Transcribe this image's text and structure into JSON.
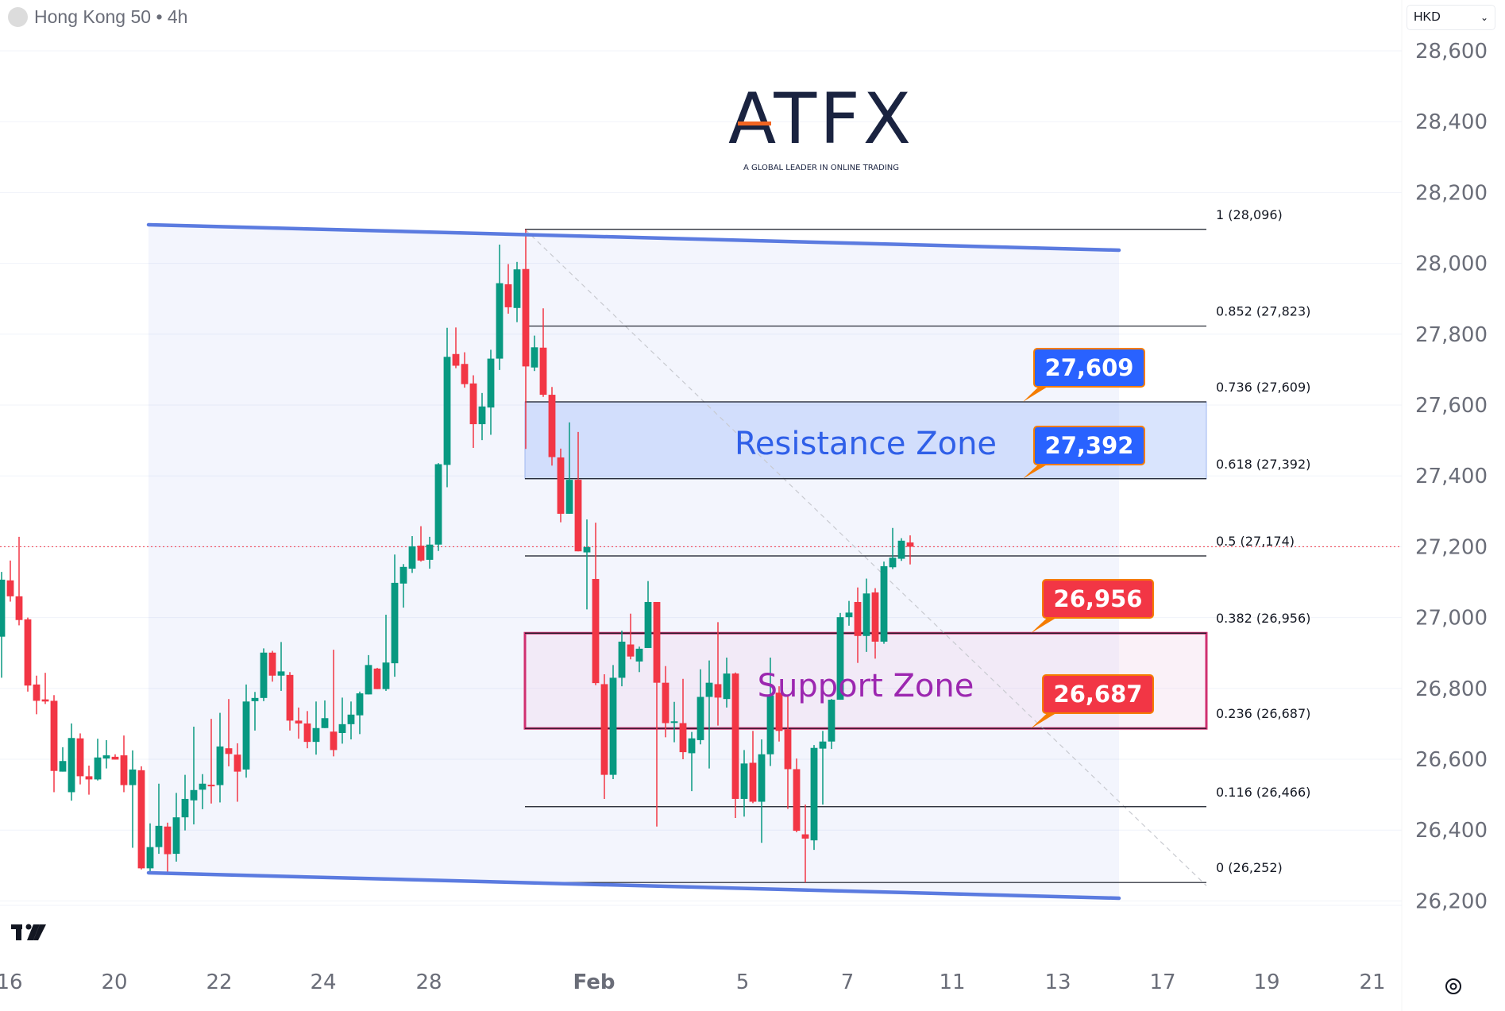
{
  "header": {
    "title": "Hong Kong 50 • 4h",
    "currency": "HKD"
  },
  "logo": {
    "brand": "ATFX",
    "tagline": "A GLOBAL LEADER IN ONLINE TRADING"
  },
  "colors": {
    "up": "#089981",
    "down": "#f23645",
    "channel": "#5b7be0",
    "resistance_text": "#2f5fe8",
    "support_text": "#9c27b0",
    "support_border": "#d03070",
    "callout_blue": "#2962ff",
    "callout_red": "#f23645",
    "callout_border": "#f57c00"
  },
  "chart_data": {
    "type": "candlestick",
    "title": "Hong Kong 50 • 4h",
    "ylim": [
      26100,
      28650
    ],
    "grid": true,
    "y_ticks": [
      "28,600",
      "28,400",
      "28,200",
      "28,000",
      "27,800",
      "27,600",
      "27,400",
      "27,200",
      "27,000",
      "26,800",
      "26,600",
      "26,400",
      "26,200"
    ],
    "y_tick_values": [
      28600,
      28400,
      28200,
      28000,
      27800,
      27600,
      27400,
      27200,
      27000,
      26800,
      26600,
      26400,
      26200
    ],
    "x_ticks": [
      "16",
      "20",
      "22",
      "24",
      "28",
      "Feb",
      "5",
      "7",
      "11",
      "13",
      "17",
      "19",
      "21"
    ],
    "last_price": 27200,
    "candles_ohlc": [
      [
        26946,
        27129,
        26830,
        27107
      ],
      [
        27105,
        27161,
        27045,
        27060
      ],
      [
        27060,
        27228,
        26978,
        26993
      ],
      [
        26995,
        27000,
        26791,
        26808
      ],
      [
        26811,
        26836,
        26727,
        26765
      ],
      [
        26769,
        26844,
        26756,
        26763
      ],
      [
        26765,
        26781,
        26507,
        26567
      ],
      [
        26565,
        26634,
        26565,
        26595
      ],
      [
        26507,
        26701,
        26483,
        26660
      ],
      [
        26659,
        26673,
        26529,
        26552
      ],
      [
        26552,
        26582,
        26500,
        26543
      ],
      [
        26543,
        26658,
        26540,
        26605
      ],
      [
        26602,
        26654,
        26574,
        26611
      ],
      [
        26607,
        26614,
        26599,
        26599
      ],
      [
        26611,
        26667,
        26507,
        26527
      ],
      [
        26527,
        26625,
        26350,
        26571
      ],
      [
        26569,
        26580,
        26289,
        26292
      ],
      [
        26292,
        26419,
        26277,
        26352
      ],
      [
        26352,
        26531,
        26333,
        26412
      ],
      [
        26410,
        26421,
        26281,
        26332
      ],
      [
        26333,
        26505,
        26311,
        26436
      ],
      [
        26436,
        26556,
        26399,
        26488
      ],
      [
        26484,
        26692,
        26416,
        26513
      ],
      [
        26514,
        26558,
        26459,
        26531
      ],
      [
        26528,
        26714,
        26475,
        26527
      ],
      [
        26527,
        26731,
        26478,
        26636
      ],
      [
        26631,
        26770,
        26580,
        26615
      ],
      [
        26613,
        26645,
        26480,
        26565
      ],
      [
        26571,
        26811,
        26548,
        26763
      ],
      [
        26764,
        26790,
        26681,
        26773
      ],
      [
        26773,
        26913,
        26764,
        26901
      ],
      [
        26901,
        26906,
        26819,
        26836
      ],
      [
        26836,
        26931,
        26793,
        26848
      ],
      [
        26838,
        26846,
        26681,
        26709
      ],
      [
        26709,
        26746,
        26658,
        26701
      ],
      [
        26701,
        26736,
        26631,
        26649
      ],
      [
        26649,
        26763,
        26613,
        26688
      ],
      [
        26688,
        26766,
        26688,
        26716
      ],
      [
        26678,
        26909,
        26608,
        26626
      ],
      [
        26674,
        26774,
        26644,
        26699
      ],
      [
        26699,
        26763,
        26656,
        26726
      ],
      [
        26724,
        26791,
        26671,
        26786
      ],
      [
        26783,
        26894,
        26783,
        26866
      ],
      [
        26856,
        26858,
        26798,
        26798
      ],
      [
        26798,
        27008,
        26793,
        26873
      ],
      [
        26871,
        27178,
        26833,
        27098
      ],
      [
        27096,
        27151,
        27028,
        27143
      ],
      [
        27138,
        27230,
        27126,
        27201
      ],
      [
        27203,
        27258,
        27158,
        27161
      ],
      [
        27163,
        27228,
        27138,
        27206
      ],
      [
        27206,
        27436,
        27188,
        27433
      ],
      [
        27431,
        27818,
        27368,
        27736
      ],
      [
        27744,
        27819,
        27704,
        27711
      ],
      [
        27716,
        27749,
        27649,
        27659
      ],
      [
        27661,
        27684,
        27479,
        27546
      ],
      [
        27546,
        27634,
        27501,
        27596
      ],
      [
        27593,
        27756,
        27516,
        27731
      ],
      [
        27731,
        28053,
        27699,
        27944
      ],
      [
        27941,
        27998,
        27858,
        27876
      ],
      [
        27874,
        28004,
        27834,
        27983
      ],
      [
        27984,
        28096,
        27476,
        27709
      ],
      [
        27706,
        27796,
        27696,
        27763
      ],
      [
        27762,
        27873,
        27623,
        27629
      ],
      [
        27629,
        27651,
        27429,
        27453
      ],
      [
        27452,
        27477,
        27269,
        27293
      ],
      [
        27293,
        27551,
        27293,
        27389
      ],
      [
        27389,
        27524,
        27187,
        27187
      ],
      [
        27184,
        27277,
        27023,
        27199
      ],
      [
        27109,
        27268,
        26809,
        26815
      ],
      [
        26812,
        26840,
        26488,
        26556
      ],
      [
        26556,
        26866,
        26544,
        26830
      ],
      [
        26830,
        26963,
        26806,
        26932
      ],
      [
        26924,
        27011,
        26882,
        26890
      ],
      [
        26876,
        26918,
        26846,
        26912
      ],
      [
        26914,
        27103,
        26914,
        27044
      ],
      [
        27044,
        27044,
        26410,
        26816
      ],
      [
        26816,
        26863,
        26662,
        26702
      ],
      [
        26705,
        26762,
        26648,
        26707
      ],
      [
        26702,
        26827,
        26600,
        26620
      ],
      [
        26617,
        26677,
        26510,
        26659
      ],
      [
        26654,
        26854,
        26642,
        26776
      ],
      [
        26776,
        26879,
        26574,
        26816
      ],
      [
        26812,
        26987,
        26695,
        26774
      ],
      [
        26770,
        26887,
        26746,
        26842
      ],
      [
        26842,
        26845,
        26434,
        26488
      ],
      [
        26488,
        26626,
        26438,
        26588
      ],
      [
        26590,
        26680,
        26476,
        26480
      ],
      [
        26480,
        26656,
        26364,
        26614
      ],
      [
        26614,
        26887,
        26581,
        26780
      ],
      [
        26788,
        26806,
        26650,
        26680
      ],
      [
        26684,
        26780,
        26460,
        26572
      ],
      [
        26572,
        26602,
        26394,
        26398
      ],
      [
        26388,
        26472,
        26252,
        26376
      ],
      [
        26371,
        26640,
        26344,
        26632
      ],
      [
        26630,
        26680,
        26472,
        26650
      ],
      [
        26650,
        26770,
        26629,
        26768
      ],
      [
        26768,
        27013,
        26768,
        27001
      ],
      [
        27001,
        27047,
        26977,
        27014
      ],
      [
        27044,
        27085,
        26872,
        26948
      ],
      [
        26948,
        27110,
        26903,
        27068
      ],
      [
        27071,
        27083,
        26884,
        26932
      ],
      [
        26932,
        27158,
        26926,
        27145
      ],
      [
        27142,
        27253,
        27137,
        27169
      ],
      [
        27166,
        27224,
        27160,
        27217
      ],
      [
        27212,
        27232,
        27150,
        27200
      ]
    ],
    "fibonacci": [
      {
        "ratio": 1,
        "price": 28096,
        "label": "1 (28,096)"
      },
      {
        "ratio": 0.852,
        "price": 27823,
        "label": "0.852 (27,823)"
      },
      {
        "ratio": 0.736,
        "price": 27609,
        "label": "0.736 (27,609)"
      },
      {
        "ratio": 0.618,
        "price": 27392,
        "label": "0.618 (27,392)"
      },
      {
        "ratio": 0.5,
        "price": 27174,
        "label": "0.5 (27,174)"
      },
      {
        "ratio": 0.382,
        "price": 26956,
        "label": "0.382 (26,956)"
      },
      {
        "ratio": 0.236,
        "price": 26687,
        "label": "0.236 (26,687)"
      },
      {
        "ratio": 0.116,
        "price": 26466,
        "label": "0.116 (26,466)"
      },
      {
        "ratio": 0,
        "price": 26252,
        "label": "0 (26,252)"
      }
    ],
    "zones": {
      "resistance": {
        "label": "Resistance Zone",
        "top": 27609,
        "bottom": 27392
      },
      "support": {
        "label": "Support Zone",
        "top": 26956,
        "bottom": 26687
      }
    },
    "callouts": [
      {
        "text": "27,609",
        "price": 27609,
        "kind": "resistance"
      },
      {
        "text": "27,392",
        "price": 27392,
        "kind": "resistance"
      },
      {
        "text": "26,956",
        "price": 26956,
        "kind": "support"
      },
      {
        "text": "26,687",
        "price": 26687,
        "kind": "support"
      }
    ]
  }
}
